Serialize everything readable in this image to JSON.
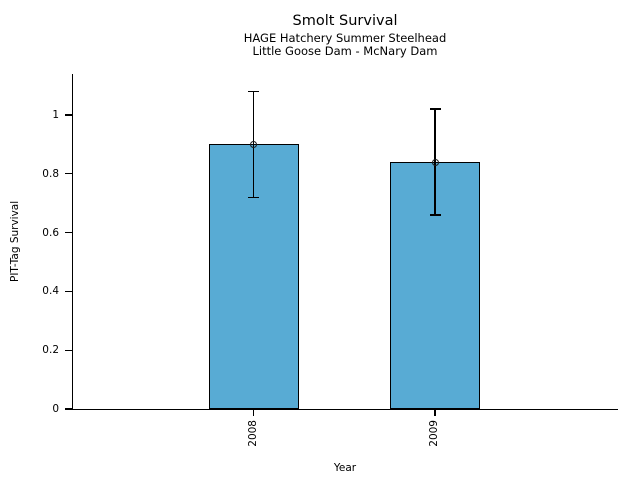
{
  "chart_data": {
    "type": "bar",
    "title": "Smolt Survival",
    "subtitle": [
      "HAGE Hatchery Summer Steelhead",
      "Little Goose Dam - McNary Dam"
    ],
    "xlabel": "Year",
    "ylabel": "PIT-Tag Survival",
    "categories": [
      "2008",
      "2009"
    ],
    "values": [
      0.9,
      0.84
    ],
    "error_low": [
      0.72,
      0.66
    ],
    "error_high": [
      1.08,
      1.02
    ],
    "ytick_values": [
      0,
      0.2,
      0.4,
      0.6,
      0.8,
      1
    ],
    "ytick_labels": [
      "0",
      "0.2",
      "0.4",
      "0.6",
      "0.8",
      "1"
    ],
    "ylim": [
      0,
      1.14
    ],
    "grid": false,
    "legend": null,
    "marker": "open-circle",
    "bar_color": "#58ABD4",
    "bar_edge_color": "#000000",
    "error_color": "#000000",
    "background_color": "#ffffff"
  }
}
